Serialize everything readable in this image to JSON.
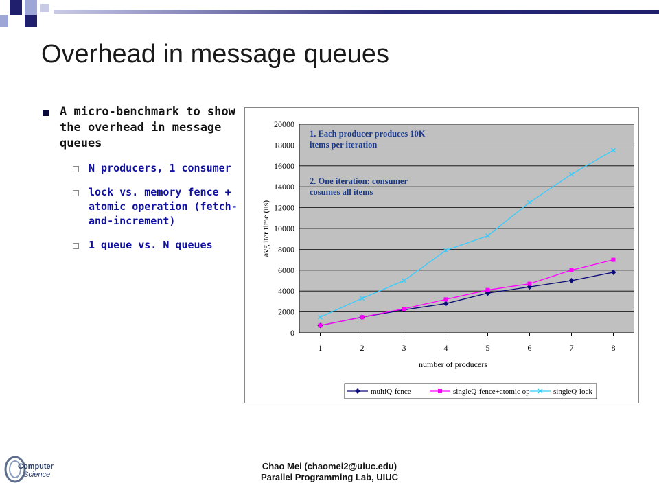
{
  "slide": {
    "title": "Overhead in message queues",
    "bullet_main": "A micro-benchmark to show the overhead in message queues",
    "sub_bullets": [
      "N producers, 1 consumer",
      "lock vs. memory fence + atomic operation (fetch-and-increment)",
      "1 queue vs. N queues"
    ],
    "footer_line1": "Chao Mei (chaomei2@uiuc.edu)",
    "footer_line2": "Parallel Programming Lab, UIUC",
    "logo_text1": "Computer",
    "logo_text2": "Science"
  },
  "chart_data": {
    "type": "line",
    "x": [
      1,
      2,
      3,
      4,
      5,
      6,
      7,
      8
    ],
    "xlabel": "number of producers",
    "ylabel": "avg iter time (us)",
    "ylim": [
      0,
      20000
    ],
    "yticks": [
      "0",
      "2000",
      "4000",
      "6000",
      "8000",
      "10000",
      "12000",
      "14000",
      "16000",
      "18000",
      "20000"
    ],
    "grid": true,
    "legend": "bottom",
    "annotations": [
      "1. Each producer produces 10K items per iteration",
      "2. One iteration: consumer cosumes all items"
    ],
    "series": [
      {
        "name": "multiQ-fence",
        "color": "#0a0a78",
        "marker": "diamond",
        "values": [
          700,
          1500,
          2200,
          2800,
          3800,
          4400,
          5000,
          5800
        ]
      },
      {
        "name": "singleQ-fence+atomic op",
        "color": "#ff00ff",
        "marker": "square",
        "values": [
          700,
          1500,
          2300,
          3200,
          4100,
          4700,
          6000,
          7000
        ]
      },
      {
        "name": "singleQ-lock",
        "color": "#33ccff",
        "marker": "x",
        "values": [
          1500,
          3300,
          5000,
          7900,
          9300,
          12500,
          15200,
          17500
        ]
      }
    ]
  }
}
